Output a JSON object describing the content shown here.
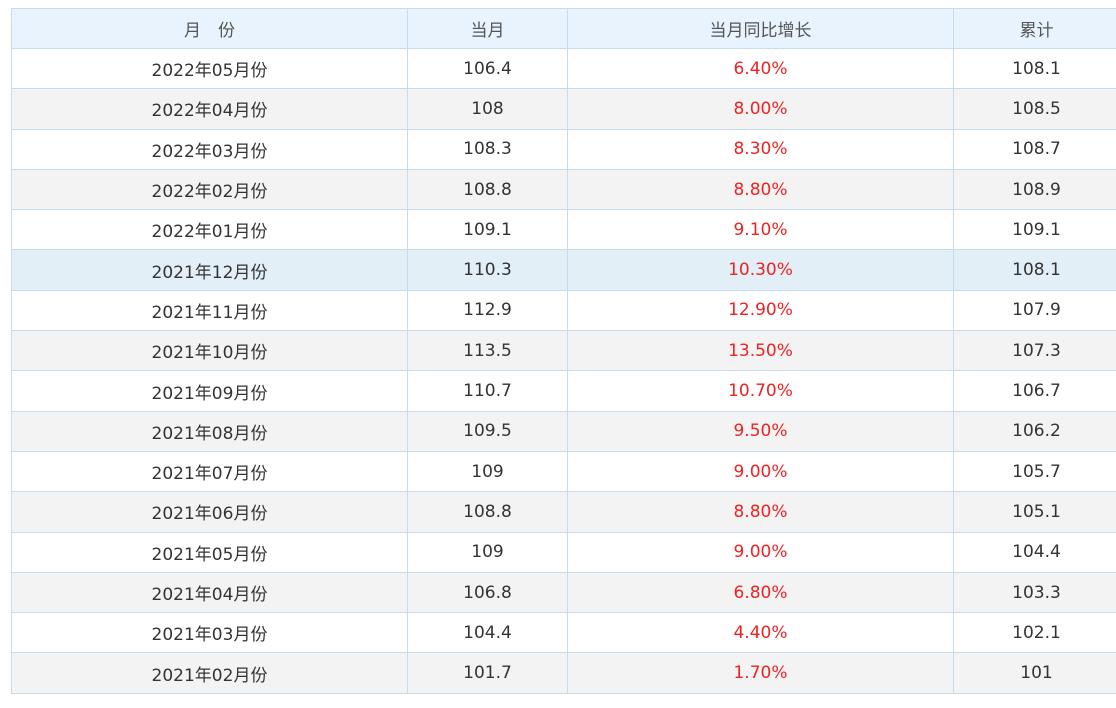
{
  "colors": {
    "header_bg": "#e8f3fd",
    "border": "#c6dbee",
    "row_alt_bg": "#f3f3f3",
    "row_highlight_bg": "#e2eff7",
    "growth_text": "#ee2222"
  },
  "table": {
    "headers": {
      "month": "月　份",
      "current": "当月",
      "yoy_growth": "当月同比增长",
      "cumulative": "累计"
    },
    "rows": [
      {
        "month": "2022年05月份",
        "current": "106.4",
        "yoy_growth": "6.40%",
        "cumulative": "108.1"
      },
      {
        "month": "2022年04月份",
        "current": "108",
        "yoy_growth": "8.00%",
        "cumulative": "108.5"
      },
      {
        "month": "2022年03月份",
        "current": "108.3",
        "yoy_growth": "8.30%",
        "cumulative": "108.7"
      },
      {
        "month": "2022年02月份",
        "current": "108.8",
        "yoy_growth": "8.80%",
        "cumulative": "108.9"
      },
      {
        "month": "2022年01月份",
        "current": "109.1",
        "yoy_growth": "9.10%",
        "cumulative": "109.1"
      },
      {
        "month": "2021年12月份",
        "current": "110.3",
        "yoy_growth": "10.30%",
        "cumulative": "108.1"
      },
      {
        "month": "2021年11月份",
        "current": "112.9",
        "yoy_growth": "12.90%",
        "cumulative": "107.9"
      },
      {
        "month": "2021年10月份",
        "current": "113.5",
        "yoy_growth": "13.50%",
        "cumulative": "107.3"
      },
      {
        "month": "2021年09月份",
        "current": "110.7",
        "yoy_growth": "10.70%",
        "cumulative": "106.7"
      },
      {
        "month": "2021年08月份",
        "current": "109.5",
        "yoy_growth": "9.50%",
        "cumulative": "106.2"
      },
      {
        "month": "2021年07月份",
        "current": "109",
        "yoy_growth": "9.00%",
        "cumulative": "105.7"
      },
      {
        "month": "2021年06月份",
        "current": "108.8",
        "yoy_growth": "8.80%",
        "cumulative": "105.1"
      },
      {
        "month": "2021年05月份",
        "current": "109",
        "yoy_growth": "9.00%",
        "cumulative": "104.4"
      },
      {
        "month": "2021年04月份",
        "current": "106.8",
        "yoy_growth": "6.80%",
        "cumulative": "103.3"
      },
      {
        "month": "2021年03月份",
        "current": "104.4",
        "yoy_growth": "4.40%",
        "cumulative": "102.1"
      },
      {
        "month": "2021年02月份",
        "current": "101.7",
        "yoy_growth": "1.70%",
        "cumulative": "101"
      }
    ],
    "highlighted_row": "2021年12月份"
  }
}
